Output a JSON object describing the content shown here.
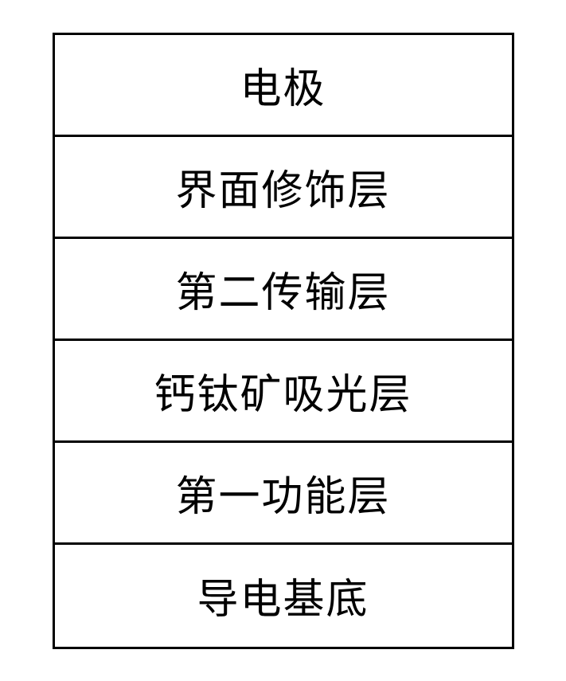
{
  "diagram": {
    "type": "stacked-layers",
    "background_color": "#ffffff",
    "border_color": "#000000",
    "border_width": 3,
    "text_color": "#000000",
    "font_size": 52,
    "font_family": "SimSun",
    "layer_height": 128,
    "diagram_width": 580,
    "layers": [
      {
        "label": "电极"
      },
      {
        "label": "界面修饰层"
      },
      {
        "label": "第二传输层"
      },
      {
        "label": "钙钛矿吸光层"
      },
      {
        "label": "第一功能层"
      },
      {
        "label": "导电基底"
      }
    ]
  }
}
